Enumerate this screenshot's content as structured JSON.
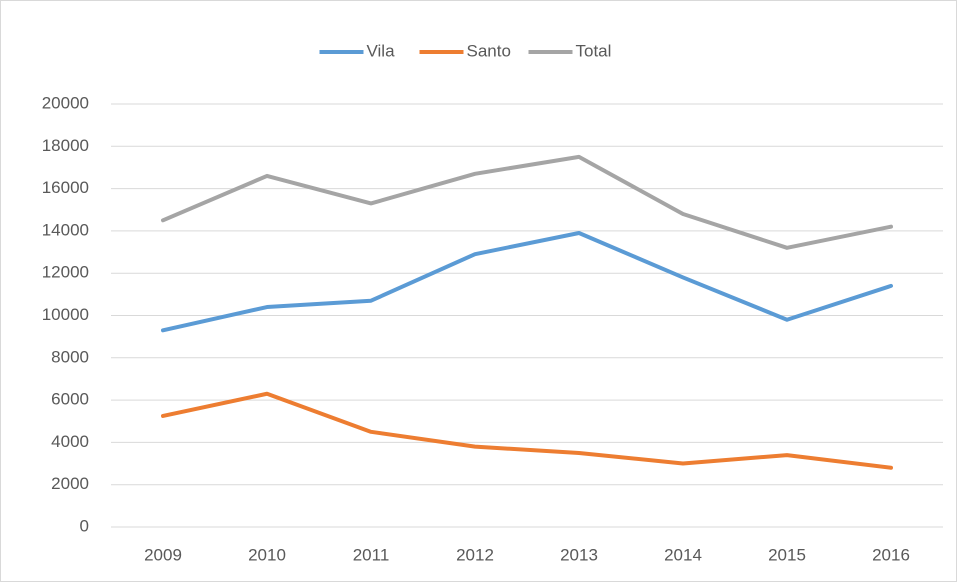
{
  "chart_data": {
    "type": "line",
    "categories": [
      "2009",
      "2010",
      "2011",
      "2012",
      "2013",
      "2014",
      "2015",
      "2016"
    ],
    "series": [
      {
        "name": "Vila",
        "color": "#5b9bd5",
        "values": [
          9300,
          10400,
          10700,
          12900,
          13900,
          11800,
          9800,
          11400
        ]
      },
      {
        "name": "Santo",
        "color": "#ed7d31",
        "values": [
          5250,
          6300,
          4500,
          3800,
          3500,
          3000,
          3400,
          2800
        ]
      },
      {
        "name": "Total",
        "color": "#a5a5a5",
        "values": [
          14500,
          16600,
          15300,
          16700,
          17500,
          14800,
          13200,
          14200
        ]
      }
    ],
    "ylim": [
      0,
      20000
    ],
    "yticks": [
      0,
      2000,
      4000,
      6000,
      8000,
      10000,
      12000,
      14000,
      16000,
      18000,
      20000
    ],
    "grid": true,
    "legend": "top"
  }
}
